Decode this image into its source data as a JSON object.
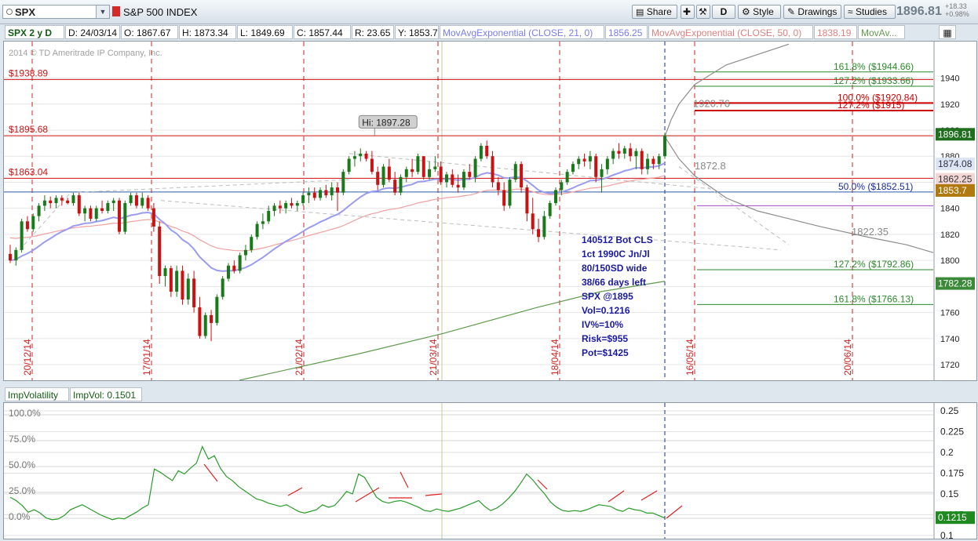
{
  "toolbar": {
    "symbol": "SPX",
    "index_name": "S&P 500 INDEX",
    "share_label": "Share",
    "d_label": "D",
    "style_label": "Style",
    "drawings_label": "Drawings",
    "studies_label": "Studies",
    "last_price": "1896.81",
    "change_abs": "+18.33",
    "change_pct": "+0.98%"
  },
  "legend": {
    "timeframe": "SPX 2 y D",
    "date": "D: 24/03/14",
    "open": "O: 1867.67",
    "high": "H: 1873.34",
    "low": "L: 1849.69",
    "close": "C: 1857.44",
    "range": "R: 23.65",
    "y": "Y: 1853.7",
    "ema21_label": "MovAvgExponential (CLOSE, 21, 0)",
    "ema21_value": "1856.25",
    "ema50_label": "MovAvgExponential (CLOSE, 50, 0)",
    "ema50_value": "1838.19",
    "ma3_label": "MovAv..."
  },
  "colors": {
    "up": "#1a7a1a",
    "down": "#cc1111",
    "ema21": "#9a9cf0",
    "ema50": "#f0a0a0",
    "ma200": "#5f9a4f",
    "level": "#cc1111",
    "fib": "#2a8a2a",
    "projection": "#8d8d8d",
    "iv": "#2a9a2a"
  },
  "chart_data": [
    {
      "type": "candlestick",
      "yaxis_ticks": [
        1720,
        1740,
        1760,
        1780,
        1800,
        1820,
        1840,
        1860,
        1880,
        1900,
        1920,
        1940
      ],
      "ylim": [
        1708,
        1968
      ],
      "copyright": "2014 © TD Ameritrade IP Company, Inc.",
      "x_date_labels": [
        "20/12/14",
        "17/01/14",
        "21/02/14",
        "21/03/14",
        "18/04/14",
        "16/05/14",
        "20/06/14"
      ],
      "candles": [
        [
          1805,
          1812,
          1798,
          1800
        ],
        [
          1800,
          1810,
          1796,
          1808
        ],
        [
          1808,
          1832,
          1806,
          1830
        ],
        [
          1830,
          1834,
          1822,
          1824
        ],
        [
          1824,
          1836,
          1822,
          1834
        ],
        [
          1834,
          1844,
          1830,
          1842
        ],
        [
          1842,
          1850,
          1838,
          1846
        ],
        [
          1846,
          1849,
          1840,
          1844
        ],
        [
          1844,
          1850,
          1840,
          1848
        ],
        [
          1848,
          1850,
          1842,
          1846
        ],
        [
          1846,
          1848,
          1843,
          1844
        ],
        [
          1844,
          1852,
          1842,
          1850
        ],
        [
          1850,
          1852,
          1834,
          1836
        ],
        [
          1836,
          1842,
          1830,
          1840
        ],
        [
          1840,
          1842,
          1830,
          1832
        ],
        [
          1832,
          1842,
          1830,
          1840
        ],
        [
          1840,
          1846,
          1836,
          1838
        ],
        [
          1838,
          1846,
          1836,
          1844
        ],
        [
          1844,
          1848,
          1838,
          1846
        ],
        [
          1846,
          1848,
          1820,
          1822
        ],
        [
          1822,
          1846,
          1820,
          1844
        ],
        [
          1844,
          1852,
          1842,
          1850
        ],
        [
          1850,
          1852,
          1840,
          1842
        ],
        [
          1842,
          1852,
          1840,
          1848
        ],
        [
          1848,
          1850,
          1838,
          1840
        ],
        [
          1840,
          1844,
          1822,
          1826
        ],
        [
          1826,
          1830,
          1782,
          1788
        ],
        [
          1788,
          1796,
          1780,
          1794
        ],
        [
          1794,
          1796,
          1772,
          1776
        ],
        [
          1776,
          1796,
          1772,
          1792
        ],
        [
          1792,
          1796,
          1766,
          1770
        ],
        [
          1770,
          1790,
          1766,
          1786
        ],
        [
          1786,
          1792,
          1760,
          1764
        ],
        [
          1764,
          1772,
          1740,
          1742
        ],
        [
          1742,
          1760,
          1740,
          1758
        ],
        [
          1758,
          1762,
          1738,
          1752
        ],
        [
          1752,
          1774,
          1750,
          1772
        ],
        [
          1772,
          1788,
          1770,
          1786
        ],
        [
          1786,
          1798,
          1784,
          1796
        ],
        [
          1796,
          1800,
          1790,
          1792
        ],
        [
          1792,
          1806,
          1790,
          1804
        ],
        [
          1804,
          1812,
          1800,
          1808
        ],
        [
          1808,
          1820,
          1806,
          1818
        ],
        [
          1818,
          1830,
          1816,
          1828
        ],
        [
          1828,
          1836,
          1824,
          1830
        ],
        [
          1830,
          1842,
          1828,
          1838
        ],
        [
          1838,
          1844,
          1834,
          1842
        ],
        [
          1842,
          1846,
          1836,
          1840
        ],
        [
          1840,
          1846,
          1836,
          1844
        ],
        [
          1844,
          1848,
          1840,
          1842
        ],
        [
          1842,
          1846,
          1838,
          1844
        ],
        [
          1844,
          1852,
          1842,
          1850
        ],
        [
          1850,
          1856,
          1844,
          1852
        ],
        [
          1852,
          1856,
          1846,
          1848
        ],
        [
          1848,
          1856,
          1846,
          1854
        ],
        [
          1854,
          1858,
          1848,
          1850
        ],
        [
          1850,
          1860,
          1846,
          1856
        ],
        [
          1856,
          1860,
          1838,
          1852
        ],
        [
          1852,
          1870,
          1850,
          1868
        ],
        [
          1868,
          1880,
          1866,
          1878
        ],
        [
          1878,
          1884,
          1872,
          1880
        ],
        [
          1880,
          1886,
          1876,
          1882
        ],
        [
          1882,
          1884,
          1876,
          1878
        ],
        [
          1878,
          1884,
          1866,
          1868
        ],
        [
          1868,
          1872,
          1854,
          1858
        ],
        [
          1858,
          1874,
          1856,
          1872
        ],
        [
          1872,
          1878,
          1860,
          1862
        ],
        [
          1862,
          1868,
          1850,
          1852
        ],
        [
          1852,
          1866,
          1850,
          1864
        ],
        [
          1864,
          1872,
          1860,
          1870
        ],
        [
          1870,
          1878,
          1864,
          1868
        ],
        [
          1868,
          1882,
          1866,
          1880
        ],
        [
          1880,
          1880,
          1862,
          1864
        ],
        [
          1864,
          1876,
          1862,
          1870
        ],
        [
          1870,
          1880,
          1868,
          1872
        ],
        [
          1872,
          1876,
          1858,
          1860
        ],
        [
          1860,
          1868,
          1856,
          1866
        ],
        [
          1866,
          1870,
          1856,
          1858
        ],
        [
          1858,
          1866,
          1852,
          1856
        ],
        [
          1856,
          1870,
          1854,
          1868
        ],
        [
          1868,
          1874,
          1862,
          1864
        ],
        [
          1864,
          1880,
          1860,
          1878
        ],
        [
          1878,
          1890,
          1876,
          1888
        ],
        [
          1888,
          1892,
          1878,
          1880
        ],
        [
          1880,
          1884,
          1856,
          1860
        ],
        [
          1860,
          1864,
          1850,
          1854
        ],
        [
          1854,
          1860,
          1838,
          1842
        ],
        [
          1842,
          1864,
          1840,
          1862
        ],
        [
          1862,
          1876,
          1860,
          1874
        ],
        [
          1874,
          1876,
          1852,
          1856
        ],
        [
          1856,
          1858,
          1830,
          1836
        ],
        [
          1836,
          1848,
          1820,
          1824
        ],
        [
          1824,
          1832,
          1814,
          1818
        ],
        [
          1818,
          1838,
          1816,
          1834
        ],
        [
          1834,
          1846,
          1832,
          1844
        ],
        [
          1844,
          1856,
          1842,
          1854
        ],
        [
          1854,
          1862,
          1850,
          1860
        ],
        [
          1860,
          1870,
          1858,
          1868
        ],
        [
          1868,
          1876,
          1866,
          1874
        ],
        [
          1874,
          1880,
          1870,
          1878
        ],
        [
          1878,
          1882,
          1872,
          1876
        ],
        [
          1876,
          1884,
          1870,
          1880
        ],
        [
          1880,
          1882,
          1860,
          1864
        ],
        [
          1864,
          1874,
          1852,
          1870
        ],
        [
          1870,
          1880,
          1866,
          1878
        ],
        [
          1878,
          1886,
          1874,
          1884
        ],
        [
          1884,
          1890,
          1878,
          1882
        ],
        [
          1882,
          1888,
          1878,
          1886
        ],
        [
          1886,
          1890,
          1876,
          1880
        ],
        [
          1880,
          1886,
          1870,
          1884
        ],
        [
          1884,
          1886,
          1866,
          1870
        ],
        [
          1870,
          1882,
          1866,
          1878
        ],
        [
          1878,
          1880,
          1870,
          1874
        ],
        [
          1874,
          1882,
          1870,
          1880
        ],
        [
          1880,
          1898,
          1878,
          1896
        ]
      ],
      "hi_label": "Hi: 1897.28",
      "horizontal_levels": [
        {
          "label": "$1938.89",
          "value": 1938.89
        },
        {
          "label": "$1895.68",
          "value": 1895.68
        },
        {
          "label": "$1863.04",
          "value": 1863.04
        }
      ],
      "fib_levels": [
        {
          "label": "161.8%  ($1944.66)",
          "value": 1944.66
        },
        {
          "label": "127.2%  ($1933.66)",
          "value": 1933.66
        },
        {
          "label": "100.0%  ($1920.84)",
          "value": 1920.84
        },
        {
          "label": "127.2%  ($1915)",
          "value": 1915.0
        },
        {
          "label": "50.0%  ($1852.51)",
          "value": 1852.51
        },
        {
          "label": "127.2%  ($1792.86)",
          "value": 1792.86
        },
        {
          "label": "161.8%  ($1766.13)",
          "value": 1766.13
        }
      ],
      "projection_labels": [
        {
          "label": "1920.76",
          "value": 1920.76
        },
        {
          "label": "1872.8",
          "value": 1872.8
        },
        {
          "label": "1822.35",
          "value": 1822.35
        }
      ],
      "price_tags": [
        {
          "label": "1896.81",
          "value": 1896.81,
          "bg": "#1f6f1f"
        },
        {
          "label": "1874.08",
          "value": 1874.08,
          "bg": "#dce5f4",
          "fg": "#334"
        },
        {
          "label": "1862.25",
          "value": 1862.25,
          "bg": "#f3d6d6",
          "fg": "#333"
        },
        {
          "label": "1853.7",
          "value": 1853.7,
          "bg": "#b07a10"
        },
        {
          "label": "1782.28",
          "value": 1782.28,
          "bg": "#3a8a3a"
        }
      ],
      "note_lines": [
        "140512 Bot CLS",
        "1ct 1990C Jn/Jl",
        "80/150SD wide",
        "38/66 days left",
        "SPX @1895",
        "Vol=0.1216",
        "IV%=10%",
        "Risk=$955",
        "Pot=$1425"
      ]
    },
    {
      "type": "line",
      "series_name": "ImpVolatility",
      "value_label": "ImpVol: 0.1501",
      "yaxis_ticks": [
        0.1,
        0.125,
        0.15,
        0.175,
        0.2,
        0.225,
        0.25
      ],
      "ylim": [
        0.1,
        0.25
      ],
      "pct_labels": [
        "100.0%",
        "75.0%",
        "50.0%",
        "25.0%",
        "0.0%"
      ],
      "last_value": "0.1215",
      "values": [
        0.146,
        0.142,
        0.136,
        0.128,
        0.131,
        0.127,
        0.121,
        0.119,
        0.12,
        0.124,
        0.131,
        0.134,
        0.137,
        0.133,
        0.129,
        0.125,
        0.122,
        0.119,
        0.121,
        0.12,
        0.124,
        0.128,
        0.133,
        0.137,
        0.18,
        0.176,
        0.171,
        0.166,
        0.178,
        0.174,
        0.181,
        0.187,
        0.207,
        0.192,
        0.196,
        0.181,
        0.171,
        0.166,
        0.159,
        0.154,
        0.149,
        0.144,
        0.142,
        0.139,
        0.137,
        0.135,
        0.137,
        0.133,
        0.129,
        0.127,
        0.129,
        0.131,
        0.137,
        0.134,
        0.136,
        0.144,
        0.153,
        0.15,
        0.174,
        0.17,
        0.158,
        0.146,
        0.141,
        0.139,
        0.141,
        0.142,
        0.14,
        0.137,
        0.134,
        0.13,
        0.129,
        0.132,
        0.13,
        0.129,
        0.131,
        0.133,
        0.136,
        0.139,
        0.142,
        0.135,
        0.13,
        0.133,
        0.138,
        0.145,
        0.153,
        0.163,
        0.174,
        0.167,
        0.158,
        0.15,
        0.14,
        0.134,
        0.13,
        0.129,
        0.13,
        0.129,
        0.131,
        0.134,
        0.137,
        0.136,
        0.135,
        0.131,
        0.129,
        0.133,
        0.131,
        0.13,
        0.127,
        0.127,
        0.124,
        0.121
      ]
    }
  ]
}
